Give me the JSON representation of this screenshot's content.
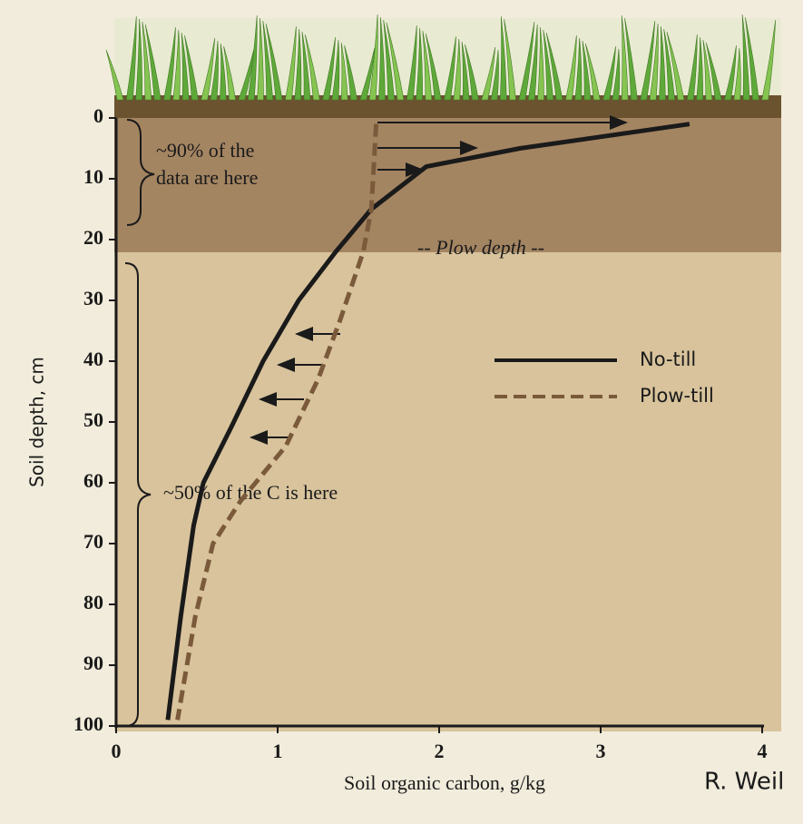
{
  "chart_data": {
    "type": "line",
    "y_label": "Soil depth, cm",
    "x_label": "Soil organic carbon, g/kg",
    "xlim": [
      0,
      4
    ],
    "xticks": [
      0,
      1,
      2,
      3,
      4
    ],
    "ylim": [
      0,
      100
    ],
    "yticks": [
      0,
      10,
      20,
      30,
      40,
      50,
      60,
      70,
      80,
      90,
      100
    ],
    "y_reversed": true,
    "series": [
      {
        "name": "No-till",
        "color": "#1a1a1a",
        "dashed": false,
        "x": [
          3.55,
          2.5,
          1.92,
          1.58,
          1.36,
          1.13,
          0.91,
          0.71,
          0.54,
          0.48,
          0.4,
          0.32
        ],
        "y": [
          1,
          5,
          8,
          15,
          22,
          30,
          40,
          51,
          60,
          67,
          82,
          99
        ]
      },
      {
        "name": "Plow-till",
        "color": "#7a5a3a",
        "dashed": true,
        "x": [
          1.61,
          1.58,
          1.53,
          1.39,
          1.25,
          1.05,
          0.77,
          0.6,
          0.49,
          0.38
        ],
        "y": [
          1,
          15,
          22,
          33,
          43,
          54,
          63,
          70,
          82,
          99
        ]
      }
    ],
    "annotations": [
      "~90% of the",
      "data are here",
      "-- Plow depth --",
      "~50% of the C is here"
    ],
    "credit": "R. Weil"
  }
}
